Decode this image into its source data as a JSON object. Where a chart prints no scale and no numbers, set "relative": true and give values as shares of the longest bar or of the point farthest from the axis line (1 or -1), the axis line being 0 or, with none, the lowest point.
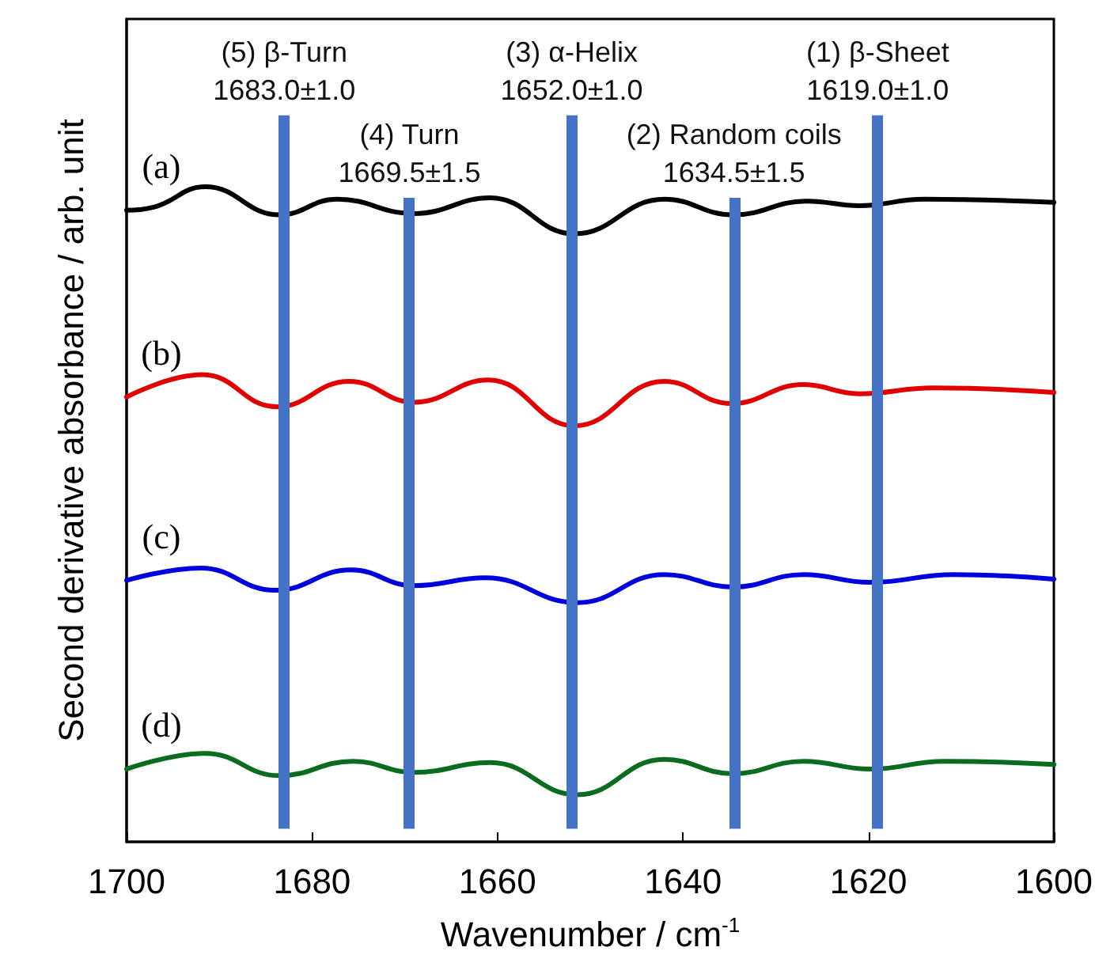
{
  "chart_data": {
    "type": "line",
    "relative": true,
    "xlabel": "Wavenumber / cm$^{-1}$",
    "ylabel": "Second derivative absorbance / arb. unit",
    "xlim": [
      1700,
      1600
    ],
    "xticks": [
      1700,
      1680,
      1660,
      1640,
      1620,
      1600
    ],
    "grid": false,
    "legend": false,
    "marker": "none",
    "line_style": "solid",
    "series": [
      {
        "name": "(a)",
        "color": "#000000",
        "x": [
          1700,
          1697,
          1691.5,
          1683.5,
          1677.3,
          1669,
          1660.8,
          1651.7,
          1642,
          1634.6,
          1626.6,
          1621,
          1614,
          1600
        ],
        "values": [
          0.964,
          0.969,
          1.0,
          0.957,
          0.981,
          0.959,
          0.983,
          0.928,
          0.981,
          0.957,
          0.978,
          0.971,
          0.981,
          0.976
        ]
      },
      {
        "name": "(b)",
        "color": "#e00000",
        "x": [
          1700,
          1691.8,
          1683.8,
          1676,
          1669,
          1661,
          1651.7,
          1642,
          1634.8,
          1627,
          1621,
          1613,
          1600
        ],
        "values": [
          0.679,
          0.713,
          0.664,
          0.703,
          0.671,
          0.705,
          0.635,
          0.703,
          0.669,
          0.698,
          0.684,
          0.693,
          0.686
        ]
      },
      {
        "name": "(c)",
        "color": "#0000dd",
        "x": [
          1700,
          1692,
          1684,
          1675.8,
          1669,
          1661.3,
          1651.4,
          1642,
          1634.6,
          1627,
          1619.8,
          1610.8,
          1600
        ],
        "values": [
          0.399,
          0.418,
          0.384,
          0.415,
          0.391,
          0.403,
          0.365,
          0.408,
          0.389,
          0.408,
          0.396,
          0.408,
          0.401
        ]
      },
      {
        "name": "(d)",
        "color": "#0b6b1e",
        "x": [
          1700,
          1691.5,
          1683.5,
          1675.6,
          1669,
          1660.8,
          1651.4,
          1642,
          1634.6,
          1627,
          1619.8,
          1611.8,
          1600
        ],
        "values": [
          0.111,
          0.135,
          0.101,
          0.123,
          0.106,
          0.121,
          0.072,
          0.126,
          0.104,
          0.123,
          0.111,
          0.123,
          0.118
        ]
      }
    ],
    "ref_lines": [
      {
        "axis": "x",
        "value": 1683.0,
        "label": "(5) β-Turn\n1683.0±1.0",
        "color": "#4472c4"
      },
      {
        "axis": "x",
        "value": 1669.5,
        "label": "(4) Turn\n1669.5±1.5",
        "color": "#4472c4"
      },
      {
        "axis": "x",
        "value": 1652.0,
        "label": "(3) α-Helix\n1652.0±1.0",
        "color": "#4472c4"
      },
      {
        "axis": "x",
        "value": 1634.5,
        "label": "(2) Random coils\n1634.5±1.5",
        "color": "#4472c4"
      },
      {
        "axis": "x",
        "value": 1619.0,
        "label": "(1) β-Sheet\n1619.0±1.0",
        "color": "#4472c4"
      }
    ]
  }
}
